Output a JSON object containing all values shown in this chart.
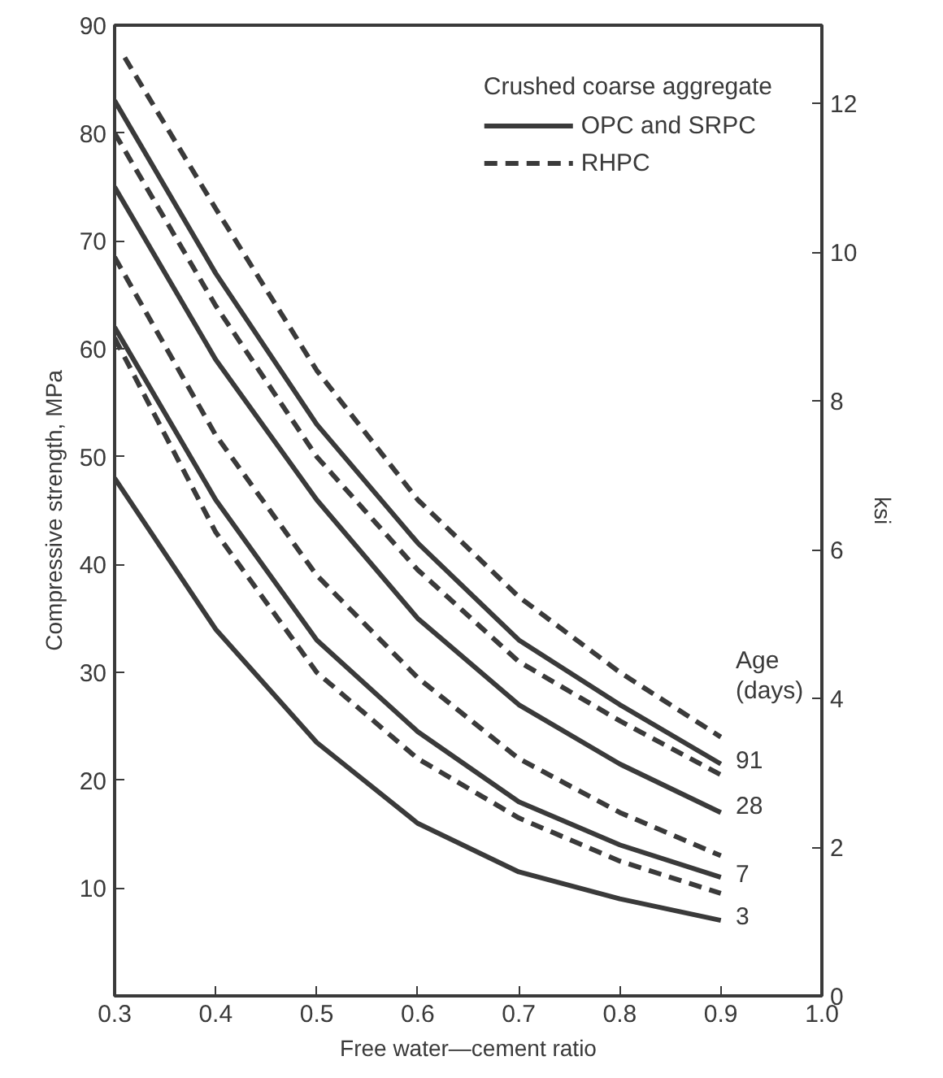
{
  "chart_data": {
    "type": "line",
    "xlabel": "Free water—cement ratio",
    "ylabel": "Compressive strength, MPa",
    "y2label": "ksi",
    "legend_title": "Crushed coarse aggregate",
    "legend": "top right",
    "grid": false,
    "x": [
      0.3,
      0.4,
      0.5,
      0.6,
      0.7,
      0.8,
      0.9
    ],
    "xlim": [
      0.3,
      1.0
    ],
    "xticks": [
      0.3,
      0.4,
      0.5,
      0.6,
      0.7,
      0.8,
      0.9,
      {
        "value": 1.0,
        "label": "1.0"
      }
    ],
    "ylim": [
      0,
      90
    ],
    "yticks": [
      10,
      20,
      30,
      40,
      50,
      60,
      70,
      80,
      90
    ],
    "y2lim": [
      0,
      13.05
    ],
    "y2ticks": [
      0,
      2,
      4,
      6,
      8,
      10,
      12
    ],
    "series": [
      {
        "name": "OPC and SRPC",
        "color": "#3a3a3a",
        "line_style": "solid",
        "values": [
          83,
          67,
          53,
          42,
          33,
          27,
          21.5
        ]
      },
      {
        "name": "RHPC",
        "color": "#3a3a3a",
        "line_style": "dashed",
        "x": [
          0.31,
          0.4,
          0.5,
          0.6,
          0.7,
          0.8,
          0.9
        ],
        "values": [
          87,
          73,
          58,
          46,
          37,
          30,
          24
        ]
      },
      {
        "color": "#3a3a3a",
        "line_style": "dashed",
        "values": [
          80,
          64,
          50,
          39.5,
          31,
          25.5,
          20.5
        ]
      },
      {
        "color": "#3a3a3a",
        "line_style": "solid",
        "values": [
          75,
          59,
          46,
          35,
          27,
          21.5,
          17
        ]
      },
      {
        "color": "#3a3a3a",
        "line_style": "dashed",
        "values": [
          68.5,
          52,
          39,
          29.5,
          22,
          17,
          13
        ]
      },
      {
        "color": "#3a3a3a",
        "line_style": "solid",
        "values": [
          62,
          46,
          33,
          24.5,
          18,
          14,
          11
        ]
      },
      {
        "color": "#3a3a3a",
        "line_style": "dashed",
        "values": [
          61,
          43,
          30,
          22,
          16.5,
          12.5,
          9.5
        ]
      },
      {
        "color": "#3a3a3a",
        "line_style": "solid",
        "values": [
          48,
          34,
          23.5,
          16,
          11.5,
          9,
          7
        ]
      }
    ],
    "annotations": [
      "Age (days)",
      "91",
      "28",
      "7",
      "3"
    ]
  }
}
